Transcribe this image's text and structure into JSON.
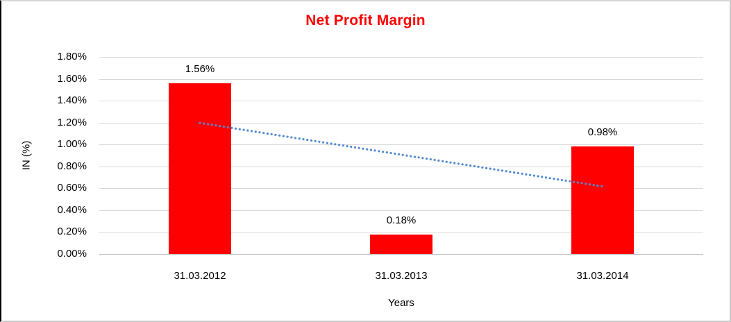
{
  "chart_data": {
    "type": "bar",
    "title": "Net Profit Margin",
    "xlabel": "Years",
    "ylabel": "IN (%)",
    "categories": [
      "31.03.2012",
      "31.03.2013",
      "31.03.2014"
    ],
    "values": [
      1.56,
      0.18,
      0.98
    ],
    "bar_labels": [
      "1.56%",
      "0.18%",
      "0.98%"
    ],
    "ylim": [
      0,
      1.8
    ],
    "ytick_step": 0.2,
    "ytick_labels": [
      "0.00%",
      "0.20%",
      "0.40%",
      "0.60%",
      "0.80%",
      "1.00%",
      "1.20%",
      "1.40%",
      "1.60%",
      "1.80%"
    ],
    "grid": true,
    "legend_position": "none",
    "colors": {
      "bar": "#ff0000",
      "title": "#ff0000",
      "trendline": "#5089d0",
      "gridline": "#d9d9d9",
      "axis_line": "#bfbfbf",
      "text": "#000000"
    },
    "trendline": {
      "style": "dotted",
      "color": "#5089d0",
      "start_value": 1.197,
      "end_value": 0.617
    }
  }
}
